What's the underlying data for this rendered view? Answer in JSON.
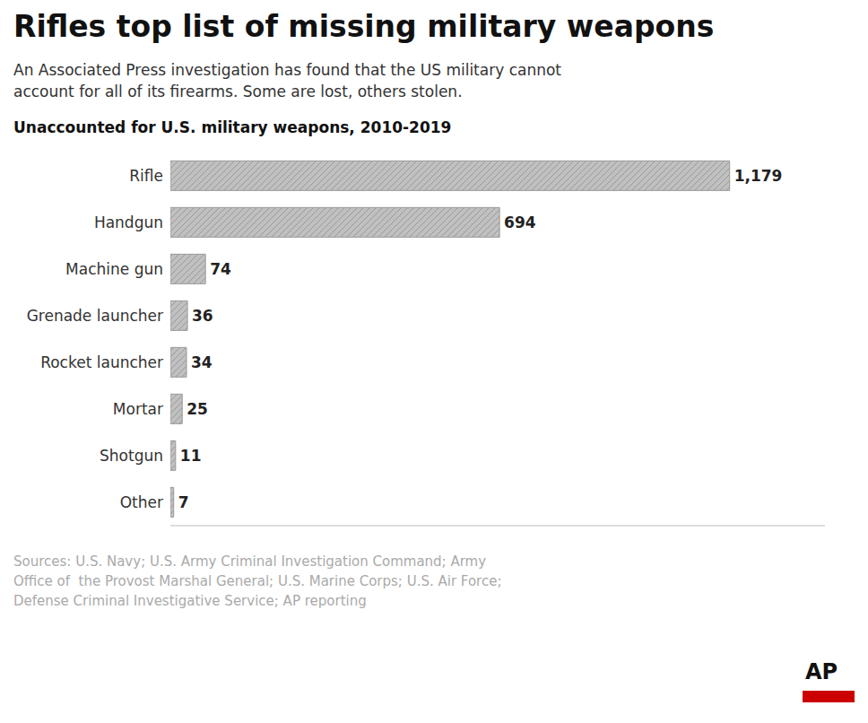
{
  "chart_data": {
    "type": "bar",
    "title": "Rifles top list of missing military weapons",
    "subtitle": "An Associated Press investigation has found that the US military cannot\naccount for all of its firearms. Some are lost, others stolen.",
    "annotations": [
      "Unaccounted for U.S. military weapons, 2010-2019",
      "Sources: U.S. Navy; U.S. Army Criminal Investigation Command; Army\nOffice of  the Provost Marshal General; U.S. Marine Corps; U.S. Air Force;\nDefense Criminal Investigative Service; AP reporting",
      "AP"
    ],
    "categories": [
      "Rifle",
      "Handgun",
      "Machine gun",
      "Grenade launcher",
      "Rocket launcher",
      "Mortar",
      "Shotgun",
      "Other"
    ],
    "values": [
      1179,
      694,
      74,
      36,
      34,
      25,
      11,
      7
    ],
    "value_labels": [
      "1,179",
      "694",
      "74",
      "36",
      "34",
      "25",
      "11",
      "7"
    ],
    "color": "#c0c0c0",
    "orientation": "horizontal",
    "data_labels": true,
    "tick_labels": "y",
    "grid": false,
    "xlim": [
      0,
      1380
    ]
  }
}
